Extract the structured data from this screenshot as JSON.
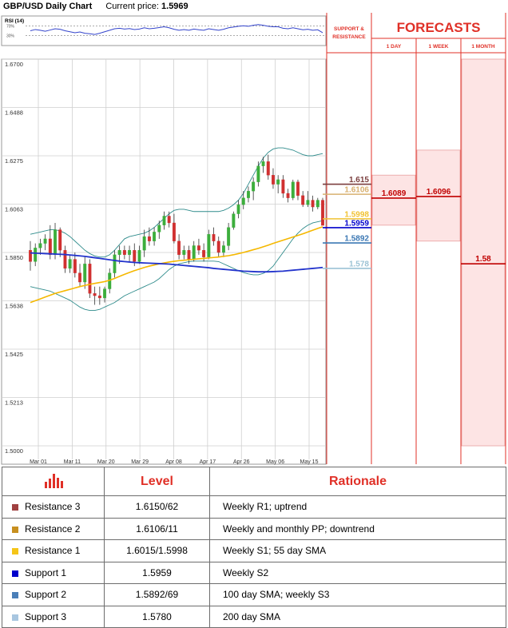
{
  "header": {
    "title": "GBP/USD Daily Chart",
    "price_label": "Current price:",
    "price_value": "1.5969"
  },
  "rsi": {
    "label": "RSI (14)",
    "level_high": "70%",
    "level_low": "30%"
  },
  "chart_data": {
    "type": "candlestick",
    "y_ticks": [
      "1.6700",
      "1.6488",
      "1.6275",
      "1.6063",
      "1.5850",
      "1.5638",
      "1.5425",
      "1.5213",
      "1.5000"
    ],
    "ylim": [
      1.5,
      1.67
    ],
    "x_ticks": [
      "Mar 01",
      "Mar 11",
      "Mar 20",
      "Mar 29",
      "Apr 08",
      "Apr 17",
      "Apr 26",
      "May 06",
      "May 15"
    ],
    "grid": true,
    "candles": [
      [
        1.586,
        1.59,
        1.577,
        1.581
      ],
      [
        1.581,
        1.589,
        1.579,
        1.587
      ],
      [
        1.587,
        1.591,
        1.584,
        1.589
      ],
      [
        1.589,
        1.593,
        1.586,
        1.591
      ],
      [
        1.591,
        1.597,
        1.582,
        1.584
      ],
      [
        1.584,
        1.598,
        1.582,
        1.595
      ],
      [
        1.595,
        1.596,
        1.583,
        1.586
      ],
      [
        1.586,
        1.588,
        1.576,
        1.578
      ],
      [
        1.578,
        1.584,
        1.576,
        1.582
      ],
      [
        1.582,
        1.585,
        1.574,
        1.576
      ],
      [
        1.576,
        1.58,
        1.57,
        1.572
      ],
      [
        1.572,
        1.583,
        1.569,
        1.58
      ],
      [
        1.58,
        1.582,
        1.565,
        1.567
      ],
      [
        1.567,
        1.57,
        1.562,
        1.566
      ],
      [
        1.566,
        1.57,
        1.562,
        1.565
      ],
      [
        1.565,
        1.57,
        1.563,
        1.569
      ],
      [
        1.569,
        1.578,
        1.567,
        1.576
      ],
      [
        1.576,
        1.586,
        1.574,
        1.584
      ],
      [
        1.584,
        1.588,
        1.58,
        1.586
      ],
      [
        1.586,
        1.588,
        1.582,
        1.584
      ],
      [
        1.584,
        1.588,
        1.581,
        1.586
      ],
      [
        1.586,
        1.589,
        1.579,
        1.581
      ],
      [
        1.581,
        1.588,
        1.58,
        1.586
      ],
      [
        1.586,
        1.595,
        1.583,
        1.592
      ],
      [
        1.592,
        1.596,
        1.588,
        1.59
      ],
      [
        1.59,
        1.596,
        1.588,
        1.594
      ],
      [
        1.594,
        1.599,
        1.591,
        1.597
      ],
      [
        1.597,
        1.603,
        1.595,
        1.601
      ],
      [
        1.601,
        1.603,
        1.596,
        1.598
      ],
      [
        1.598,
        1.602,
        1.589,
        1.59
      ],
      [
        1.59,
        1.593,
        1.582,
        1.584
      ],
      [
        1.584,
        1.588,
        1.582,
        1.586
      ],
      [
        1.586,
        1.588,
        1.58,
        1.582
      ],
      [
        1.582,
        1.59,
        1.581,
        1.588
      ],
      [
        1.588,
        1.591,
        1.584,
        1.586
      ],
      [
        1.586,
        1.589,
        1.581,
        1.583
      ],
      [
        1.583,
        1.595,
        1.582,
        1.593
      ],
      [
        1.593,
        1.596,
        1.588,
        1.59
      ],
      [
        1.59,
        1.592,
        1.583,
        1.585
      ],
      [
        1.585,
        1.59,
        1.583,
        1.588
      ],
      [
        1.588,
        1.598,
        1.586,
        1.596
      ],
      [
        1.596,
        1.603,
        1.595,
        1.602
      ],
      [
        1.602,
        1.608,
        1.6,
        1.606
      ],
      [
        1.606,
        1.612,
        1.604,
        1.609
      ],
      [
        1.609,
        1.614,
        1.607,
        1.612
      ],
      [
        1.612,
        1.618,
        1.608,
        1.616
      ],
      [
        1.616,
        1.625,
        1.614,
        1.623
      ],
      [
        1.623,
        1.627,
        1.62,
        1.625
      ],
      [
        1.625,
        1.628,
        1.617,
        1.619
      ],
      [
        1.619,
        1.622,
        1.613,
        1.615
      ],
      [
        1.615,
        1.619,
        1.611,
        1.617
      ],
      [
        1.617,
        1.619,
        1.609,
        1.611
      ],
      [
        1.611,
        1.613,
        1.607,
        1.609
      ],
      [
        1.609,
        1.617,
        1.608,
        1.616
      ],
      [
        1.616,
        1.617,
        1.608,
        1.61
      ],
      [
        1.61,
        1.612,
        1.605,
        1.606
      ],
      [
        1.606,
        1.612,
        1.605,
        1.608
      ],
      [
        1.608,
        1.61,
        1.603,
        1.605
      ],
      [
        1.605,
        1.609,
        1.604,
        1.608
      ],
      [
        1.608,
        1.609,
        1.598,
        1.5969
      ]
    ],
    "sma_55": [
      1.563,
      1.5638,
      1.5646,
      1.5654,
      1.5662,
      1.567,
      1.5676,
      1.5682,
      1.5688,
      1.5694,
      1.57,
      1.5705,
      1.571,
      1.5714,
      1.5718,
      1.5722,
      1.5728,
      1.5736,
      1.5745,
      1.5754,
      1.5762,
      1.577,
      1.5777,
      1.5784,
      1.579,
      1.5795,
      1.58,
      1.5804,
      1.5808,
      1.5811,
      1.5814,
      1.5816,
      1.5818,
      1.582,
      1.5822,
      1.5824,
      1.5826,
      1.5828,
      1.583,
      1.5833,
      1.5836,
      1.584,
      1.5845,
      1.585,
      1.5856,
      1.5862,
      1.5868,
      1.5875,
      1.5882,
      1.589,
      1.5897,
      1.5904,
      1.5911,
      1.5918,
      1.5925,
      1.5932,
      1.594,
      1.5948,
      1.5956,
      1.5963
    ],
    "sma_200": [
      1.5848,
      1.5847,
      1.5846,
      1.5845,
      1.5844,
      1.5843,
      1.5842,
      1.5841,
      1.5839,
      1.5837,
      1.5835,
      1.5833,
      1.583,
      1.5827,
      1.5824,
      1.5821,
      1.5818,
      1.5815,
      1.5812,
      1.581,
      1.5808,
      1.5806,
      1.5805,
      1.5804,
      1.5803,
      1.5802,
      1.5801,
      1.58,
      1.5799,
      1.5797,
      1.5795,
      1.5793,
      1.5791,
      1.5789,
      1.5787,
      1.5785,
      1.5783,
      1.578,
      1.5778,
      1.5776,
      1.5774,
      1.5772,
      1.577,
      1.5768,
      1.5767,
      1.5766,
      1.5765,
      1.5765,
      1.5765,
      1.5766,
      1.5767,
      1.5768,
      1.577,
      1.5772,
      1.5774,
      1.5776,
      1.5778,
      1.578,
      1.5782,
      1.5784
    ],
    "bb_upper": [
      1.593,
      1.5935,
      1.594,
      1.5945,
      1.595,
      1.595,
      1.5945,
      1.5935,
      1.592,
      1.59,
      1.588,
      1.586,
      1.5845,
      1.5835,
      1.583,
      1.583,
      1.584,
      1.586,
      1.5885,
      1.591,
      1.592,
      1.5925,
      1.593,
      1.5935,
      1.5945,
      1.596,
      1.598,
      1.6,
      1.602,
      1.6035,
      1.604,
      1.604,
      1.6035,
      1.603,
      1.603,
      1.603,
      1.603,
      1.603,
      1.603,
      1.6035,
      1.6045,
      1.606,
      1.608,
      1.611,
      1.615,
      1.619,
      1.623,
      1.6265,
      1.629,
      1.6305,
      1.631,
      1.631,
      1.6305,
      1.63,
      1.629,
      1.628,
      1.6275,
      1.6275,
      1.628,
      1.6285
    ],
    "bb_lower": [
      1.57,
      1.5695,
      1.569,
      1.5685,
      1.568,
      1.567,
      1.566,
      1.565,
      1.564,
      1.5625,
      1.561,
      1.56,
      1.5595,
      1.5595,
      1.56,
      1.561,
      1.562,
      1.563,
      1.5645,
      1.566,
      1.567,
      1.568,
      1.569,
      1.57,
      1.571,
      1.572,
      1.5735,
      1.5755,
      1.5775,
      1.579,
      1.58,
      1.5805,
      1.581,
      1.5812,
      1.5812,
      1.5812,
      1.5812,
      1.5812,
      1.581,
      1.58,
      1.579,
      1.578,
      1.577,
      1.5762,
      1.5756,
      1.5752,
      1.5752,
      1.5758,
      1.577,
      1.579,
      1.582,
      1.585,
      1.588,
      1.591,
      1.5935,
      1.5955,
      1.597,
      1.598,
      1.5985,
      1.599
    ],
    "rsi_values": [
      50,
      55,
      52,
      48,
      53,
      58,
      56,
      50,
      46,
      42,
      45,
      40,
      38,
      35,
      40,
      46,
      52,
      58,
      60,
      57,
      59,
      55,
      57,
      62,
      58,
      60,
      63,
      66,
      62,
      56,
      52,
      55,
      52,
      57,
      54,
      52,
      58,
      55,
      52,
      56,
      62,
      65,
      68,
      70,
      68,
      72,
      75,
      72,
      68,
      66,
      66,
      60,
      58,
      62,
      58,
      54,
      56,
      52,
      54,
      42
    ]
  },
  "levels_panel": {
    "header_line1": "SUPPORT &",
    "header_line2": "RESISTANCE",
    "forecast_title": "FORECASTS",
    "col_1day": "1 DAY",
    "col_1week": "1 WEEK",
    "col_1month": "1 MONTH",
    "levels": [
      {
        "label": "1.615",
        "value": 1.615,
        "color": "#7b3f3f"
      },
      {
        "label": "1.6106",
        "value": 1.6106,
        "color": "#d8b070"
      },
      {
        "label": "1.5998",
        "value": 1.5998,
        "color": "#f1c232"
      },
      {
        "label": "1.5959",
        "value": 1.5959,
        "color": "#0000cc"
      },
      {
        "label": "1.5892",
        "value": 1.5892,
        "color": "#3c78b4"
      },
      {
        "label": "1.578",
        "value": 1.578,
        "color": "#9cc3d5"
      }
    ],
    "forecasts": [
      {
        "label": "1.6089",
        "value": 1.6089,
        "band_high": 1.619,
        "band_low": 1.597
      },
      {
        "label": "1.6096",
        "value": 1.6096,
        "band_high": 1.63,
        "band_low": 1.59
      },
      {
        "label": "1.58",
        "value": 1.58,
        "band_high": 1.67,
        "band_low": 1.5
      }
    ]
  },
  "table": {
    "col_level": "Level",
    "col_rationale": "Rationale",
    "rows": [
      {
        "name": "Resistance 3",
        "level": "1.6150/62",
        "rationale": "Weekly R1; uptrend",
        "color": "#a04040"
      },
      {
        "name": "Resistance 2",
        "level": "1.6106/11",
        "rationale": "Weekly and monthly PP; downtrend",
        "color": "#c89020"
      },
      {
        "name": "Resistance 1",
        "level": "1.6015/1.5998",
        "rationale": "Weekly S1; 55 day SMA",
        "color": "#f5c518"
      },
      {
        "name": "Support 1",
        "level": "1.5959",
        "rationale": "Weekly S2",
        "color": "#0000cc"
      },
      {
        "name": "Support 2",
        "level": "1.5892/69",
        "rationale": "100 day SMA; weekly S3",
        "color": "#4a7fb8"
      },
      {
        "name": "Support 3",
        "level": "1.5780",
        "rationale": "200 day SMA",
        "color": "#a8c6e0"
      }
    ]
  },
  "colors": {
    "accent": "#e03027",
    "bull": "#3cae3c",
    "bear": "#d03030",
    "sma55": "#f5b800",
    "sma200": "#2233cc",
    "bands": "#2e8b8b",
    "forecast_band": "#fde4e4"
  }
}
